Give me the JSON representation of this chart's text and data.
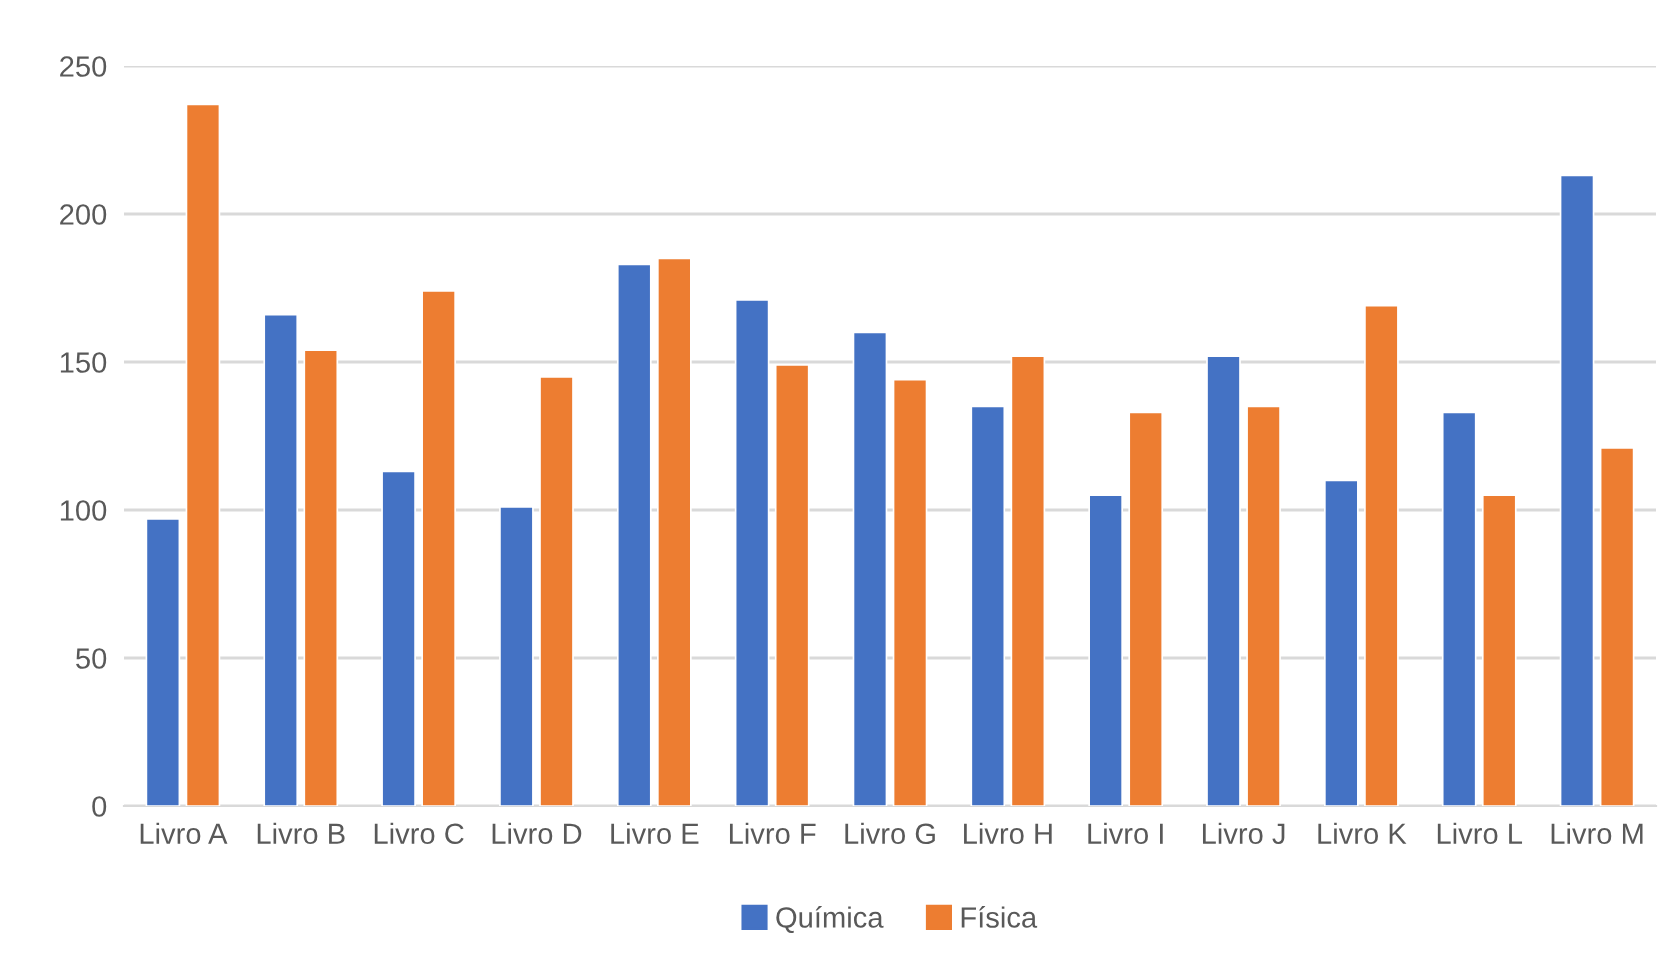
{
  "chart_data": {
    "type": "bar",
    "categories": [
      "Livro A",
      "Livro B",
      "Livro C",
      "Livro D",
      "Livro E",
      "Livro F",
      "Livro G",
      "Livro H",
      "Livro I",
      "Livro J",
      "Livro K",
      "Livro L",
      "Livro M"
    ],
    "series": [
      {
        "name": "Química",
        "color": "#4472c4",
        "values": [
          97,
          166,
          113,
          101,
          183,
          171,
          160,
          135,
          105,
          152,
          110,
          133,
          213
        ]
      },
      {
        "name": "Física",
        "color": "#ed7d31",
        "values": [
          237,
          154,
          174,
          145,
          185,
          149,
          144,
          152,
          133,
          135,
          169,
          105,
          121
        ]
      }
    ],
    "ylim": [
      0,
      250
    ],
    "yticks": [
      0,
      50,
      100,
      150,
      200,
      250
    ],
    "grid": "y",
    "legend": "bottom"
  }
}
